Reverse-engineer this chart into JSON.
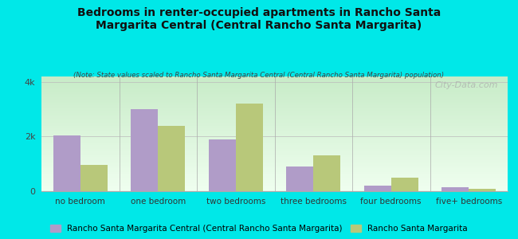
{
  "title": "Bedrooms in renter-occupied apartments in Rancho Santa\nMargarita Central (Central Rancho Santa Margarita)",
  "subtitle": "(Note: State values scaled to Rancho Santa Margarita Central (Central Rancho Santa Margarita) population)",
  "categories": [
    "no bedroom",
    "one bedroom",
    "two bedrooms",
    "three bedrooms",
    "four bedrooms",
    "five+ bedrooms"
  ],
  "local_values": [
    2050,
    3000,
    1900,
    900,
    200,
    150
  ],
  "state_values": [
    950,
    2400,
    3200,
    1300,
    500,
    80
  ],
  "local_color": "#b09cc8",
  "state_color": "#b8c87a",
  "figure_bg": "#00e8e8",
  "chart_bg_top": "#d8f0d8",
  "chart_bg_bottom": "#f0fff0",
  "ylim": [
    0,
    4200
  ],
  "ytick_vals": [
    0,
    2000,
    4000
  ],
  "ytick_labels": [
    "0",
    "2k",
    "4k"
  ],
  "legend_local": "Rancho Santa Margarita Central (Central Rancho Santa Margarita)",
  "legend_state": "Rancho Santa Margarita",
  "bar_width": 0.35,
  "watermark": "City-Data.com"
}
